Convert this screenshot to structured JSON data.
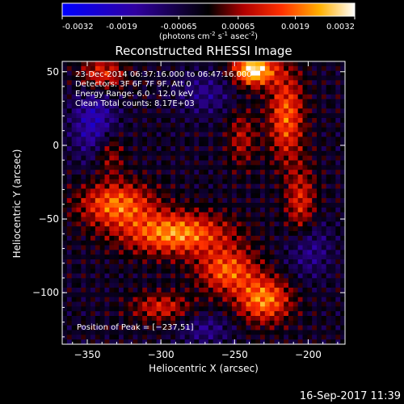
{
  "colorbar": {
    "ticks": [
      "-0.0032",
      "-0.0019",
      "-0.00065",
      "0.00065",
      "0.0019",
      "0.0032"
    ],
    "range": [
      -0.0032,
      0.0032
    ],
    "units": "(photons cm",
    "units_exp1": "-2",
    "units_mid": " s",
    "units_exp2": "-1",
    "units_mid2": " asec",
    "units_exp3": "-2",
    "units_end": ")"
  },
  "chart_data": {
    "type": "heatmap",
    "title": "Reconstructed RHESSI Image",
    "xlabel": "Heliocentric X (arcsec)",
    "ylabel": "Heliocentric Y (arcsec)",
    "xlim": [
      -367,
      -175
    ],
    "ylim": [
      -135,
      57
    ],
    "xticks": [
      -350,
      -300,
      -250,
      -200
    ],
    "yticks": [
      50,
      0,
      -50,
      -100
    ],
    "xtick_labels": [
      "−350",
      "−300",
      "−250",
      "−200"
    ],
    "ytick_labels": [
      "50",
      "0",
      "−50",
      "−100"
    ],
    "peak": [
      -237,
      51
    ],
    "annotations": [
      "23-Dec-2014 06:37:16.000 to 06:47:16.000",
      "Detectors: 3F 6F 7F 9F, Att 0",
      "Energy Range: 6.0 - 12.0 keV",
      "Clean    Total counts: 8.17E+03"
    ],
    "peak_label": "Position of Peak = [−237,51]",
    "colors": {
      "negative": "#0000ff",
      "zero": "#000000",
      "positive_mid": "#ff3000",
      "positive_high": "#ffffff"
    }
  },
  "footer": {
    "timestamp": "16-Sep-2017 11:39"
  }
}
